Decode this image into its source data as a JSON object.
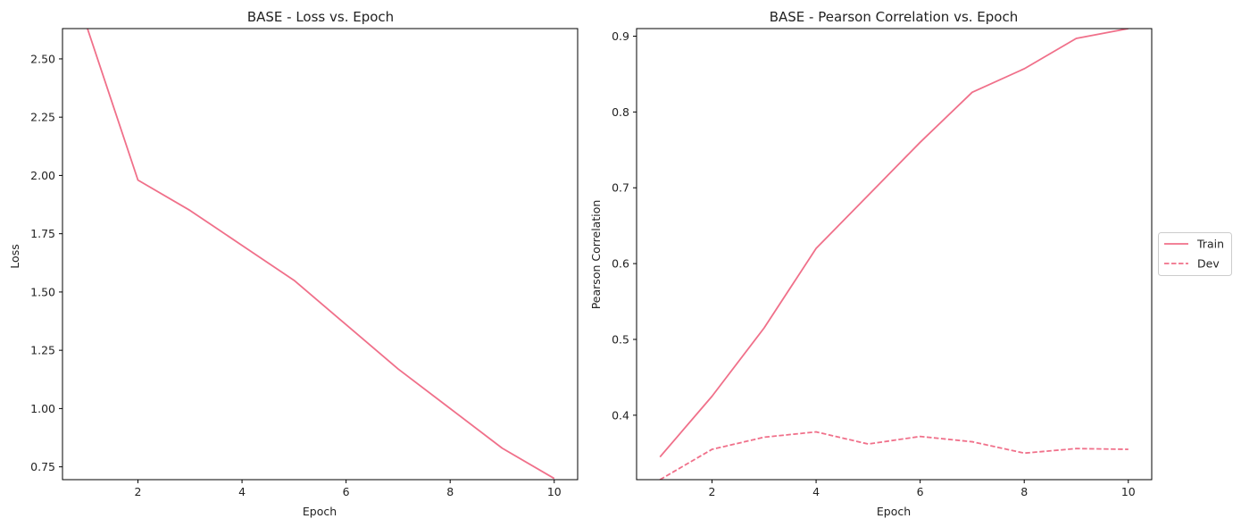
{
  "chart_data": [
    {
      "type": "line",
      "title": "BASE - Loss vs. Epoch",
      "xlabel": "Epoch",
      "ylabel": "Loss",
      "xlim": [
        0.55,
        10.45
      ],
      "ylim": [
        0.695,
        2.63
      ],
      "xticks": [
        2,
        4,
        6,
        8,
        10
      ],
      "xtick_labels": [
        "2",
        "4",
        "6",
        "8",
        "10"
      ],
      "yticks": [
        0.75,
        1.0,
        1.25,
        1.5,
        1.75,
        2.0,
        2.25,
        2.5
      ],
      "ytick_labels": [
        "0.75",
        "1.00",
        "1.25",
        "1.50",
        "1.75",
        "2.00",
        "2.25",
        "2.50"
      ],
      "grid": false,
      "x": [
        1,
        2,
        3,
        4,
        5,
        6,
        7,
        8,
        9,
        10
      ],
      "series": [
        {
          "values": [
            2.65,
            1.98,
            1.85,
            1.7,
            1.55,
            1.36,
            1.17,
            1.0,
            0.83,
            0.7
          ],
          "color": "#f0708a",
          "style": "solid"
        }
      ]
    },
    {
      "type": "line",
      "title": "BASE - Pearson Correlation vs. Epoch",
      "xlabel": "Epoch",
      "ylabel": "Pearson Correlation",
      "xlim": [
        0.55,
        10.45
      ],
      "ylim": [
        0.315,
        0.91
      ],
      "xticks": [
        2,
        4,
        6,
        8,
        10
      ],
      "xtick_labels": [
        "2",
        "4",
        "6",
        "8",
        "10"
      ],
      "yticks": [
        0.4,
        0.5,
        0.6,
        0.7,
        0.8,
        0.9
      ],
      "ytick_labels": [
        "0.4",
        "0.5",
        "0.6",
        "0.7",
        "0.8",
        "0.9"
      ],
      "grid": false,
      "legend_position": "outside-right",
      "x": [
        1,
        2,
        3,
        4,
        5,
        6,
        7,
        8,
        9,
        10
      ],
      "series": [
        {
          "name": "Train",
          "values": [
            0.345,
            0.425,
            0.515,
            0.62,
            0.69,
            0.76,
            0.826,
            0.857,
            0.897,
            0.91
          ],
          "color": "#f0708a",
          "style": "solid"
        },
        {
          "name": "Dev",
          "values": [
            0.315,
            0.355,
            0.371,
            0.378,
            0.362,
            0.372,
            0.365,
            0.35,
            0.356,
            0.355
          ],
          "color": "#f0708a",
          "style": "dashed"
        }
      ]
    }
  ]
}
